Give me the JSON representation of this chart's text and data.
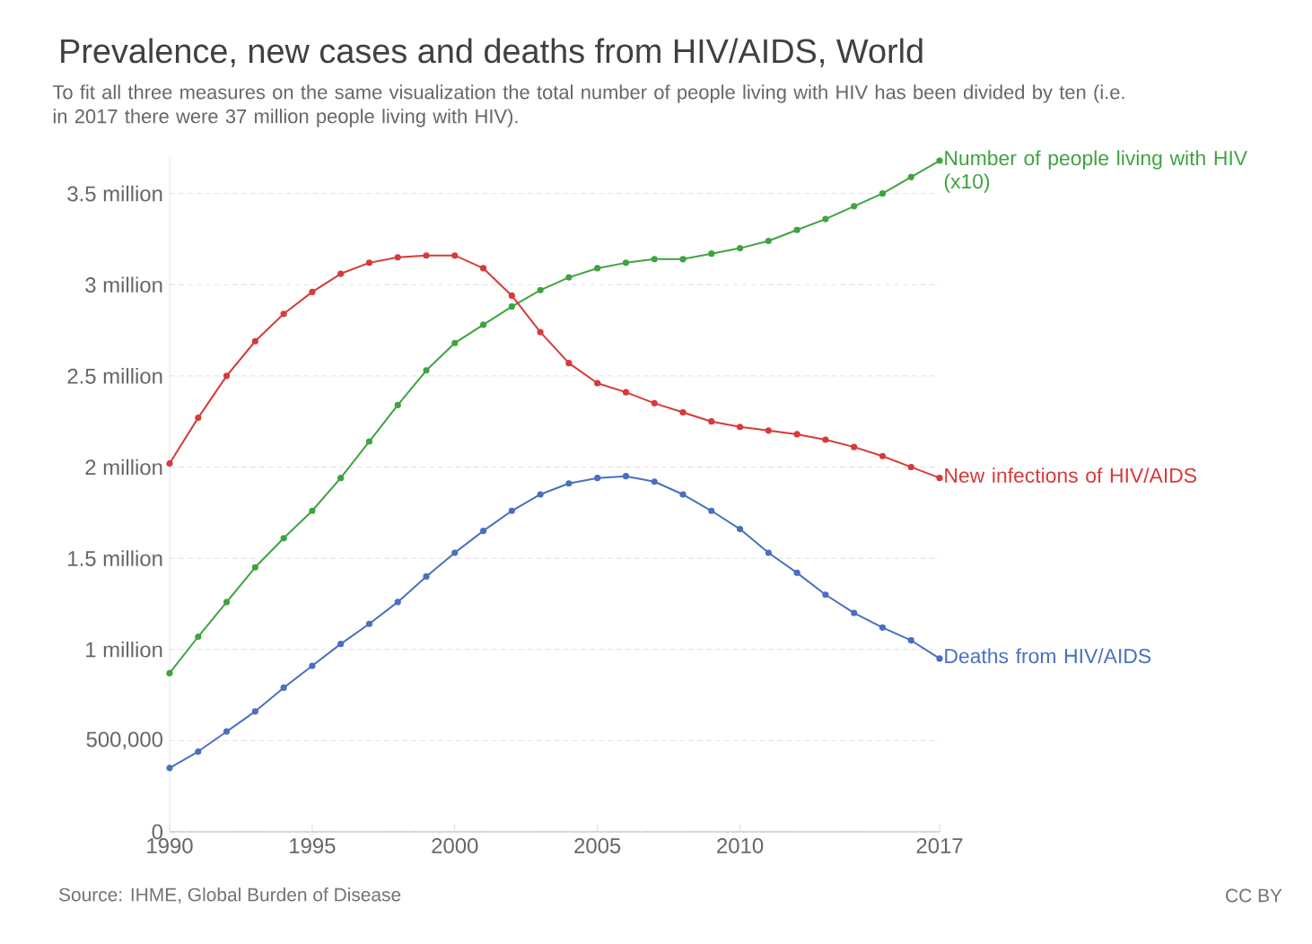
{
  "chart_data": {
    "type": "line",
    "title": "Prevalence, new cases and deaths from HIV/AIDS, World",
    "subtitle": "To fit all three measures on the same visualization the total number of people living with HIV has been divided by ten (i.e. in 2017 there were 37 million people living with HIV).",
    "x": [
      1990,
      1991,
      1992,
      1993,
      1994,
      1995,
      1996,
      1997,
      1998,
      1999,
      2000,
      2001,
      2002,
      2003,
      2004,
      2005,
      2006,
      2007,
      2008,
      2009,
      2010,
      2011,
      2012,
      2013,
      2014,
      2015,
      2016,
      2017
    ],
    "series": [
      {
        "name": "Number of people living with HIV (x10)",
        "color": "#3fa33f",
        "values": [
          870000,
          1070000,
          1260000,
          1450000,
          1610000,
          1760000,
          1940000,
          2140000,
          2340000,
          2530000,
          2680000,
          2780000,
          2880000,
          2970000,
          3040000,
          3090000,
          3120000,
          3140000,
          3140000,
          3170000,
          3200000,
          3240000,
          3300000,
          3360000,
          3430000,
          3500000,
          3590000,
          3680000
        ]
      },
      {
        "name": "New infections of HIV/AIDS",
        "color": "#d63a3a",
        "values": [
          2020000,
          2270000,
          2500000,
          2690000,
          2840000,
          2960000,
          3060000,
          3120000,
          3150000,
          3160000,
          3160000,
          3090000,
          2940000,
          2740000,
          2570000,
          2460000,
          2410000,
          2350000,
          2300000,
          2250000,
          2220000,
          2200000,
          2180000,
          2150000,
          2110000,
          2060000,
          2000000,
          1940000
        ]
      },
      {
        "name": "Deaths from HIV/AIDS",
        "color": "#4a6fc1",
        "values": [
          350000,
          440000,
          550000,
          660000,
          790000,
          910000,
          1030000,
          1140000,
          1260000,
          1400000,
          1530000,
          1650000,
          1760000,
          1850000,
          1910000,
          1940000,
          1950000,
          1920000,
          1850000,
          1760000,
          1660000,
          1530000,
          1420000,
          1300000,
          1200000,
          1120000,
          1050000,
          950000
        ]
      }
    ],
    "xlim": [
      1990,
      2017
    ],
    "xticks": [
      1990,
      1995,
      2000,
      2005,
      2010,
      2017
    ],
    "ylim": [
      0,
      3700000
    ],
    "yticks": [
      0,
      {
        "value": 500000,
        "label": "500,000"
      },
      {
        "value": 1000000,
        "label": "1 million"
      },
      {
        "value": 1500000,
        "label": "1.5 million"
      },
      {
        "value": 2000000,
        "label": "2 million"
      },
      {
        "value": 2500000,
        "label": "2.5 million"
      },
      {
        "value": 3000000,
        "label": "3 million"
      },
      {
        "value": 3500000,
        "label": "3.5 million"
      }
    ],
    "grid": "y",
    "marker": "circle",
    "line_style": "solid",
    "annotations": [
      "Source: IHME, Global Burden of Disease",
      "CC BY"
    ]
  }
}
